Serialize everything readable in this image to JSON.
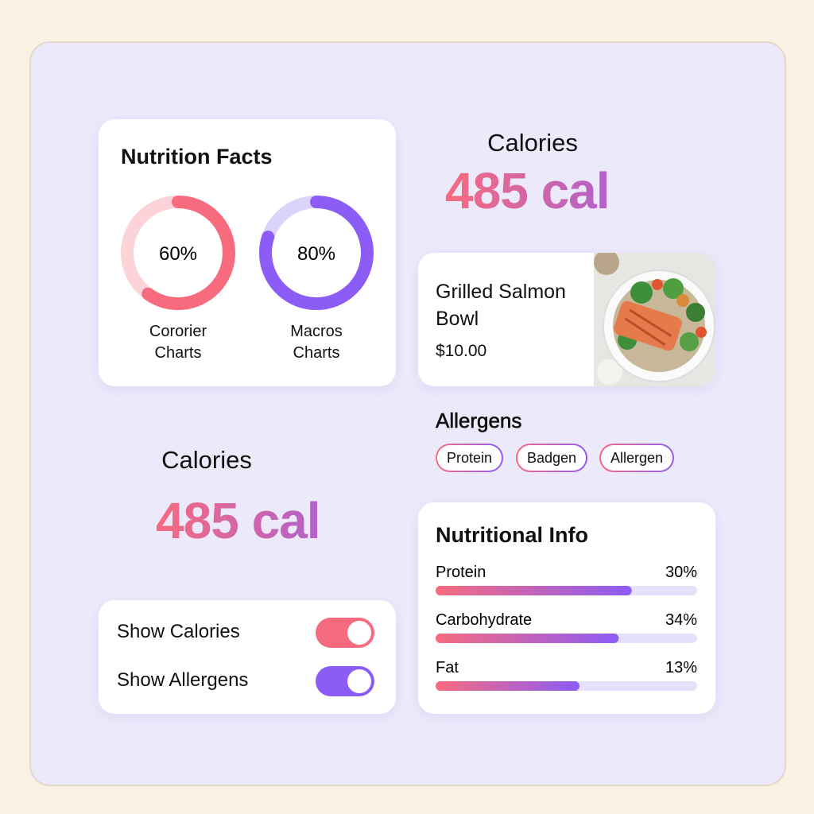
{
  "nutrition_facts": {
    "title": "Nutrition Facts",
    "rings": [
      {
        "value": 60,
        "label": "60%",
        "caption": "Cororier Charts",
        "color": "#f76b7e",
        "track": "#fbd3d9"
      },
      {
        "value": 80,
        "label": "80%",
        "caption": "Macros Charts",
        "color": "#8b5cf6",
        "track": "#dcd3fb"
      }
    ]
  },
  "calories_top": {
    "label": "Calories",
    "value": "485 cal"
  },
  "product": {
    "name": "Grilled Salmon Bowl",
    "price": "$10.00"
  },
  "allergens": {
    "title": "Allergens",
    "chips": [
      "Protein",
      "Badgen",
      "Allergen"
    ]
  },
  "calories_bottom": {
    "label": "Calories",
    "value": "485 cal"
  },
  "toggles": [
    {
      "label": "Show Calories",
      "on": true,
      "color": "#f76b7e"
    },
    {
      "label": "Show Allergens",
      "on": true,
      "color": "#8b5cf6"
    }
  ],
  "nutritional_info": {
    "title": "Nutritional Info",
    "items": [
      {
        "name": "Protein",
        "label": "30%",
        "fill": 75
      },
      {
        "name": "Carbohydrate",
        "label": "34%",
        "fill": 70
      },
      {
        "name": "Fat",
        "label": "13%",
        "fill": 55
      }
    ]
  }
}
